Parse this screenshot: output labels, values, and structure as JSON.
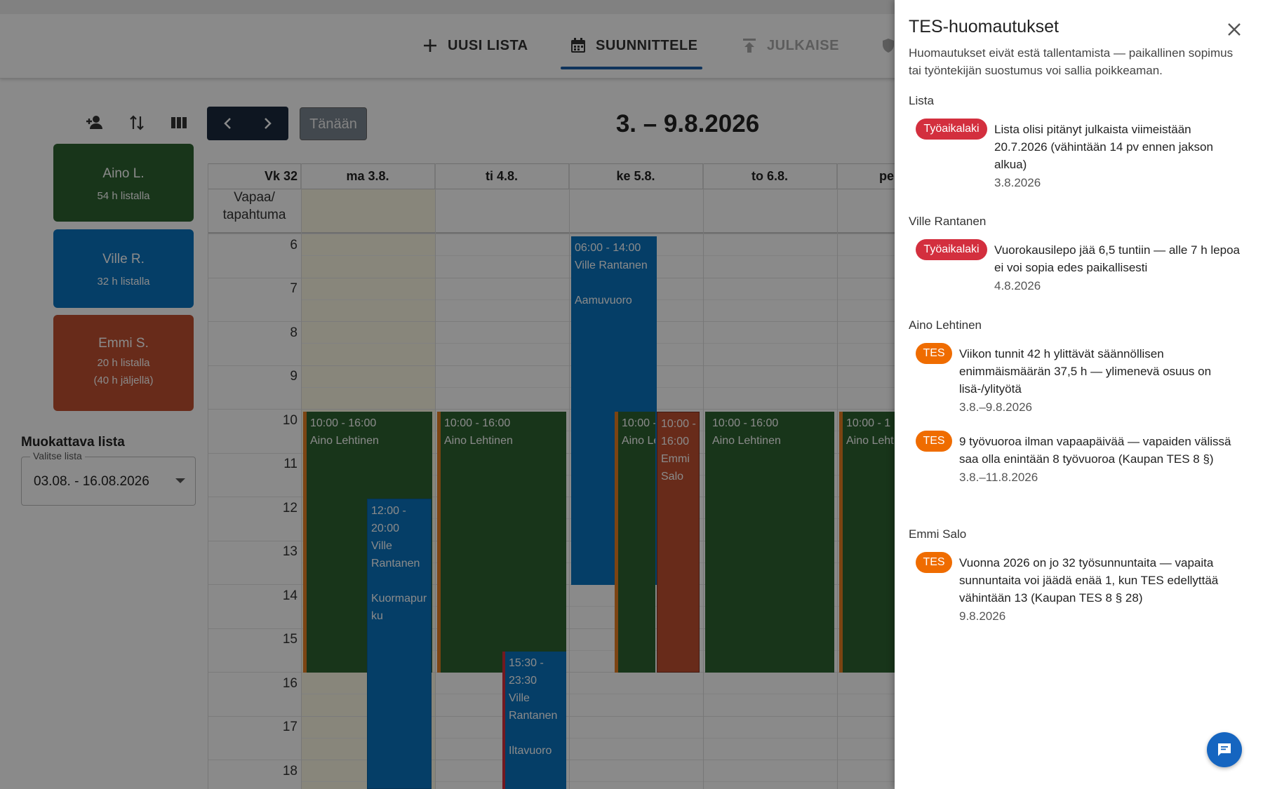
{
  "topnav": {
    "tabs": [
      {
        "label": "UUSI LISTA",
        "icon": "plus-icon"
      },
      {
        "label": "SUUNNITTELE",
        "icon": "calendar-icon",
        "active": true
      },
      {
        "label": "JULKAISE",
        "icon": "publish-icon",
        "disabled": true
      }
    ]
  },
  "toolbar": {
    "today_label": "Tänään",
    "range_title": "3. – 9.8.2026"
  },
  "employees": [
    {
      "name": "Aino L.",
      "hours": "54 h listalla",
      "extra": "",
      "color": "#2d6230"
    },
    {
      "name": "Ville R.",
      "hours": "32 h listalla",
      "extra": "",
      "color": "#0a73bf"
    },
    {
      "name": "Emmi S.",
      "hours": "20 h listalla",
      "extra": "(40 h jäljellä)",
      "color": "#c15130"
    }
  ],
  "edit_list": {
    "label": "Muokattava lista",
    "select_legend": "Valitse lista",
    "select_value": "03.08. - 16.08.2026"
  },
  "calendar": {
    "week_label": "Vk 32",
    "allday_label_1": "Vapaa/",
    "allday_label_2": "tapahtuma",
    "days": [
      "ma 3.8.",
      "ti 4.8.",
      "ke 5.8.",
      "to 6.8.",
      "pe"
    ],
    "hours": [
      "6",
      "7",
      "8",
      "9",
      "10",
      "11",
      "12",
      "13",
      "14",
      "15",
      "16",
      "17",
      "18"
    ],
    "shifts": {
      "mon_aino": {
        "time": "10:00 - 16:00",
        "name": "Aino Lehtinen"
      },
      "mon_ville": {
        "time1": "12:00 -",
        "time2": "20:00",
        "name1": "Ville",
        "name2": "Rantanen",
        "role1": "Kuormapur",
        "role2": "ku"
      },
      "tue_aino": {
        "time": "10:00 - 16:00",
        "name": "Aino Lehtinen"
      },
      "tue_ville": {
        "time1": "15:30 -",
        "time2": "23:30",
        "name1": "Ville",
        "name2": "Rantanen",
        "role": "Iltavuoro"
      },
      "wed_ville": {
        "time": "06:00 - 14:00",
        "name": "Ville Rantanen",
        "role": "Aamuvuoro"
      },
      "wed_aino": {
        "time": "10:00 - 1",
        "name": "Aino Le"
      },
      "wed_emmi": {
        "time1": "10:00 -",
        "time2": "16:00",
        "name1": "Emmi",
        "name2": "Salo"
      },
      "thu_aino": {
        "time": "10:00 - 16:00",
        "name": "Aino Lehtinen"
      },
      "fri_aino": {
        "time": "10:00 - 1",
        "name": "Aino Leht"
      }
    }
  },
  "panel": {
    "title": "TES-huomautukset",
    "description": "Huomautukset eivät estä tallentamista — paikallinen sopimus tai työntekijän suostumus voi sallia poikkeaman.",
    "sections": [
      {
        "heading": "Lista",
        "notes": [
          {
            "badge": "Työaikalaki",
            "text": "Lista olisi pitänyt julkaista viimeistään 20.7.2026 (vähintään 14 pv ennen jakson alkua)",
            "date": "3.8.2026"
          }
        ]
      },
      {
        "heading": "Ville Rantanen",
        "notes": [
          {
            "badge": "Työaikalaki",
            "text": "Vuorokausilepo jää 6,5 tuntiin — alle 7 h lepoa ei voi sopia edes paikallisesti",
            "date": "4.8.2026"
          }
        ]
      },
      {
        "heading": "Aino Lehtinen",
        "notes": [
          {
            "badge": "TES",
            "text": "Viikon tunnit 42 h ylittävät säännöllisen enimmäismäärän 37,5 h — ylimenevä osuus on lisä-/ylityötä",
            "date": "3.8.–9.8.2026"
          },
          {
            "badge": "TES",
            "text": "9 työvuoroa ilman vapaapäivää — vapaiden välissä saa olla enintään 8 työvuoroa (Kaupan TES 8 §)",
            "date": "3.8.–11.8.2026"
          }
        ]
      },
      {
        "heading": "Emmi Salo",
        "notes": [
          {
            "badge": "TES",
            "text": "Vuonna 2026 on jo 32 työsunnuntaita — vapaita sunnuntaita voi jäädä enää 1, kun TES edellyttää vähintään 13 (Kaupan TES 8 § 28)",
            "date": "9.8.2026"
          }
        ]
      }
    ]
  },
  "colors": {
    "green_shift": "#2d6230",
    "blue_shift": "#0a73bf",
    "red_shift": "#c15130",
    "badge_red": "#d32f3e",
    "badge_orange": "#ef6c00",
    "accent": "#1c5fa8"
  }
}
